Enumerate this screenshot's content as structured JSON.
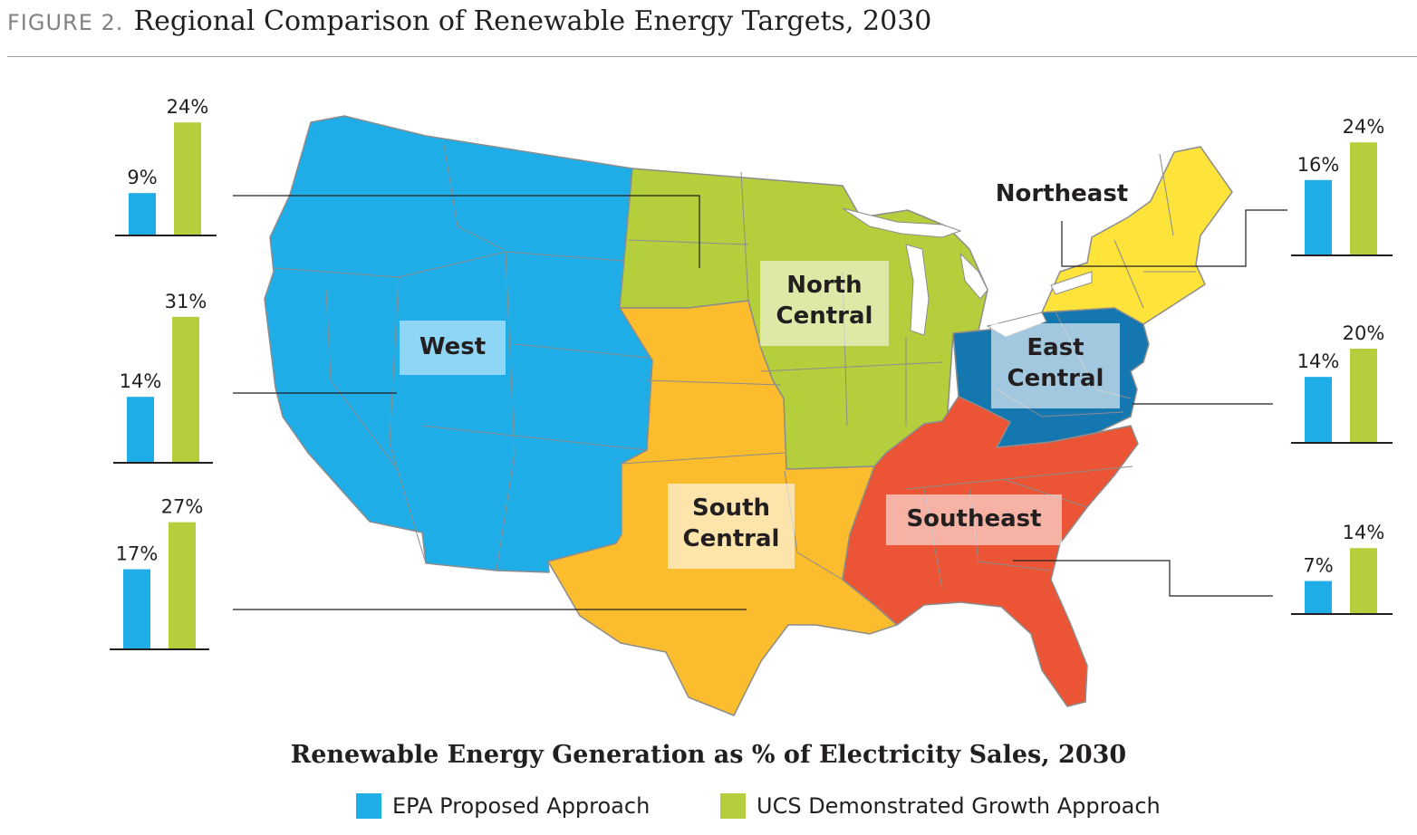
{
  "figure": {
    "number": "FIGURE 2.",
    "title": "Regional Comparison of Renewable Energy Targets, 2030"
  },
  "colors": {
    "epa": "#1fade8",
    "ucs": "#b5cf3c",
    "west": "#1fade8",
    "north_central": "#b5cf3c",
    "south_central": "#fbbc2e",
    "northeast": "#fde33a",
    "east_central": "#1577b0",
    "southeast": "#eb5535",
    "state_border": "#8c8c8c",
    "leader_line": "#231f20"
  },
  "regions": [
    {
      "id": "west",
      "name_lines": [
        "West"
      ],
      "epa": "9%",
      "ucs": "24%",
      "epa_value": 9,
      "ucs_value": 24
    },
    {
      "id": "north_central",
      "name_lines": [
        "North",
        "Central"
      ],
      "epa": "14%",
      "ucs": "31%",
      "epa_value": 14,
      "ucs_value": 31
    },
    {
      "id": "south_central",
      "name_lines": [
        "South",
        "Central"
      ],
      "epa": "17%",
      "ucs": "27%",
      "epa_value": 17,
      "ucs_value": 27
    },
    {
      "id": "northeast",
      "name_lines": [
        "Northeast"
      ],
      "epa": "16%",
      "ucs": "24%",
      "epa_value": 16,
      "ucs_value": 24
    },
    {
      "id": "east_central",
      "name_lines": [
        "East",
        "Central"
      ],
      "epa": "14%",
      "ucs": "20%",
      "epa_value": 14,
      "ucs_value": 20
    },
    {
      "id": "southeast",
      "name_lines": [
        "Southeast"
      ],
      "epa": "7%",
      "ucs": "14%",
      "epa_value": 7,
      "ucs_value": 14
    }
  ],
  "legend": {
    "title": "Renewable Energy Generation as % of Electricity Sales, 2030",
    "items": [
      {
        "label": "EPA Proposed Approach",
        "color": "#1fade8"
      },
      {
        "label": "UCS Demonstrated Growth Approach",
        "color": "#b5cf3c"
      }
    ]
  }
}
